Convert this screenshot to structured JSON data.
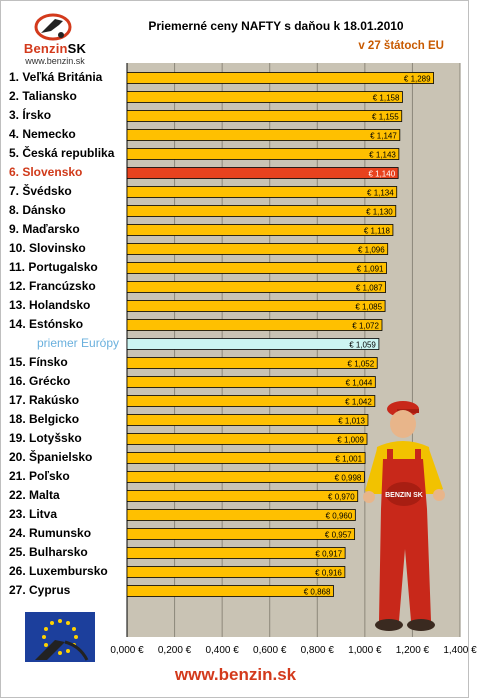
{
  "logo": {
    "brand_left": "Benzin",
    "brand_right": "SK",
    "url": "www.benzin.sk"
  },
  "header": {
    "title": "Priemerné ceny NAFTY s daňou k 18.01.2010",
    "subtitle": "v 27 štátoch EU"
  },
  "footer": {
    "url": "www.benzin.sk"
  },
  "colors": {
    "bar": "#ffc000",
    "highlight": "#e8421e",
    "average": "#ccf5f2",
    "plot_bg": "#c9c3b4",
    "accent": "#d33a1c"
  },
  "mascot": {
    "shirt_text": "BENZIN SK"
  },
  "chart_data": {
    "type": "bar",
    "orientation": "horizontal",
    "title": "Priemerné ceny NAFTY s daňou k 18.01.2010",
    "subtitle": "v 27 štátoch EU",
    "xlim": [
      0,
      1.4
    ],
    "x_ticks": [
      "0,000 €",
      "0,200 €",
      "0,400 €",
      "0,600 €",
      "0,800 €",
      "1,000 €",
      "1,200 €",
      "1,400 €"
    ],
    "grid": "vertical",
    "categories": [
      "1. Veľká Británia",
      "2. Taliansko",
      "3. Írsko",
      "4. Nemecko",
      "5. Česká republika",
      "6. Slovensko",
      "7. Švédsko",
      "8. Dánsko",
      "9. Maďarsko",
      "10. Slovinsko",
      "11. Portugalsko",
      "12. Francúzsko",
      "13. Holandsko",
      "14. Estónsko",
      "priemer Európy",
      "15. Fínsko",
      "16. Grécko",
      "17. Rakúsko",
      "18. Belgicko",
      "19. Lotyšsko",
      "20. Španielsko",
      "21. Poľsko",
      "22. Malta",
      "23. Litva",
      "24. Rumunsko",
      "25. Bulharsko",
      "26. Luxembursko",
      "27. Cyprus"
    ],
    "values": [
      1.289,
      1.158,
      1.155,
      1.147,
      1.143,
      1.14,
      1.134,
      1.13,
      1.118,
      1.096,
      1.091,
      1.087,
      1.085,
      1.072,
      1.059,
      1.052,
      1.044,
      1.042,
      1.013,
      1.009,
      1.001,
      0.998,
      0.97,
      0.96,
      0.957,
      0.917,
      0.916,
      0.868
    ],
    "data_labels": [
      "€ 1,289",
      "€ 1,158",
      "€ 1,155",
      "€ 1,147",
      "€ 1,143",
      "€ 1,140",
      "€ 1,134",
      "€ 1,130",
      "€ 1,118",
      "€ 1,096",
      "€ 1,091",
      "€ 1,087",
      "€ 1,085",
      "€ 1,072",
      "€ 1,059",
      "€ 1,052",
      "€ 1,044",
      "€ 1,042",
      "€ 1,013",
      "€ 1,009",
      "€ 1,001",
      "€ 0,998",
      "€ 0,970",
      "€ 0,960",
      "€ 0,957",
      "€ 0,917",
      "€ 0,916",
      "€ 0,868"
    ],
    "highlight_index": 5,
    "average_index": 14
  }
}
